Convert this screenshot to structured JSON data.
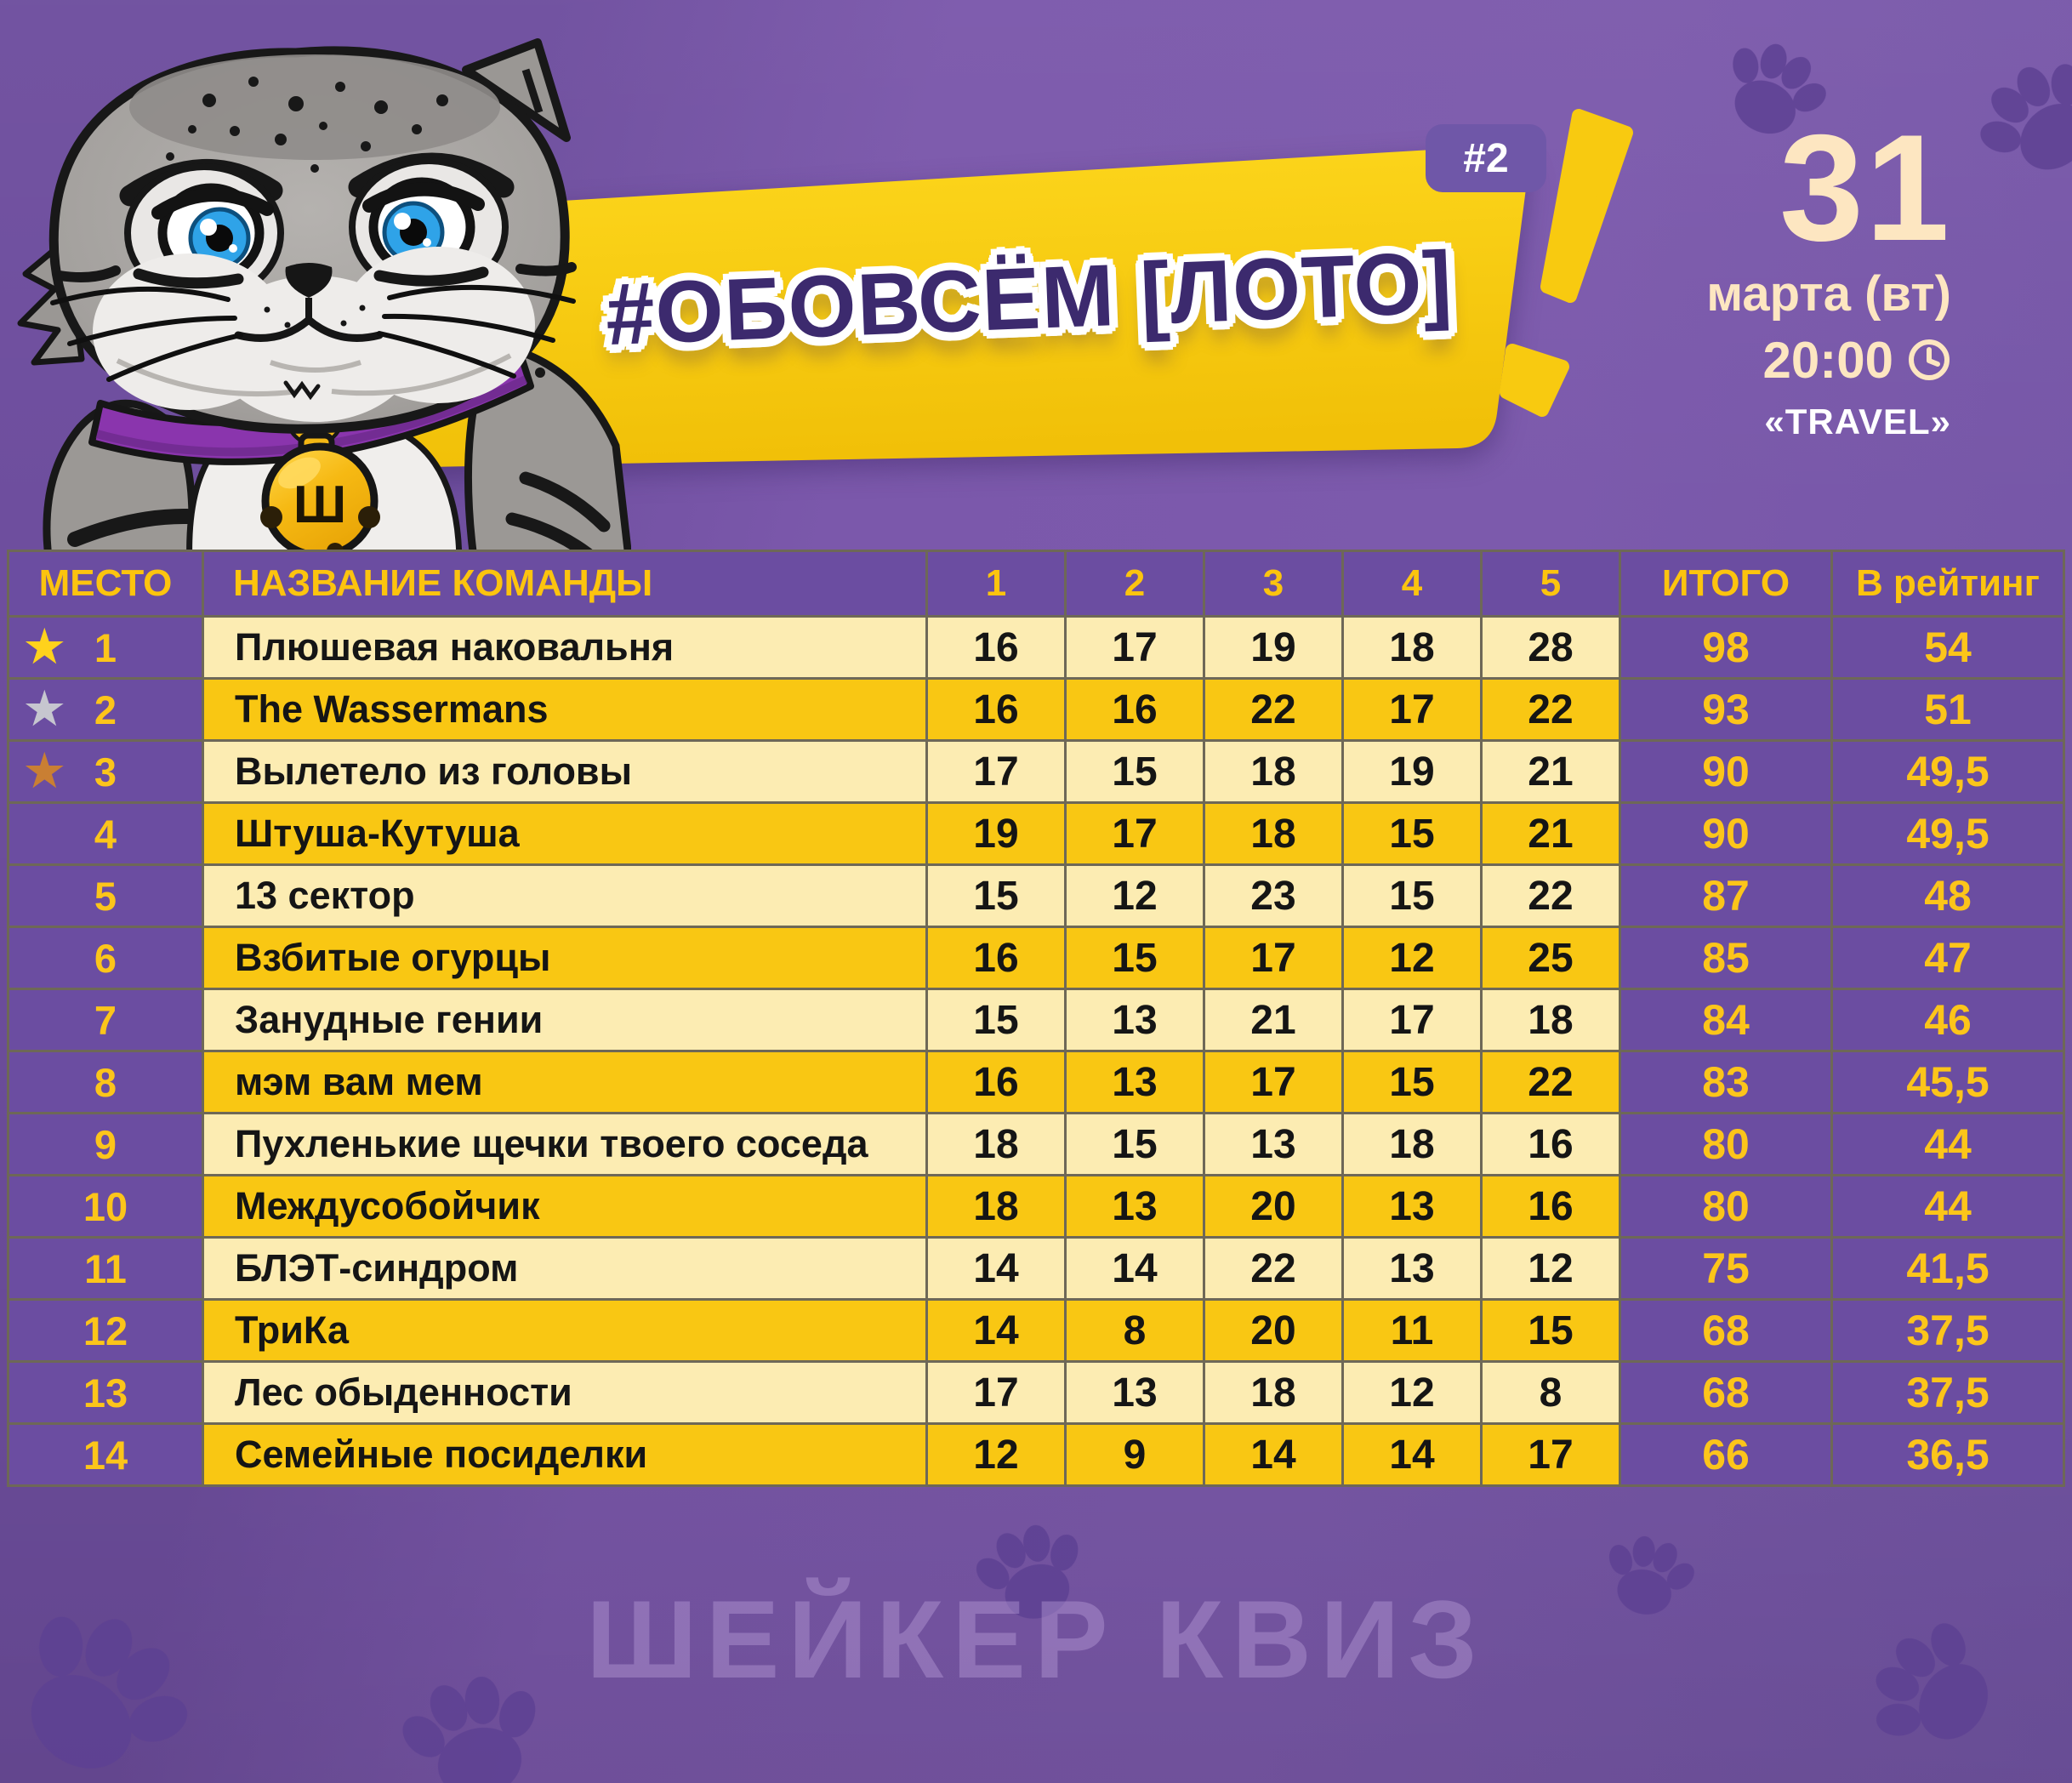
{
  "event": {
    "series_number": "#2",
    "title": "#ОБОВСЁМ [ЛОТО]",
    "day": "31",
    "month_weekday": "марта (вт)",
    "time": "20:00",
    "venue": "«TRAVEL»"
  },
  "branding": {
    "watermark": "ШЕЙКЕР КВИЗ",
    "medallion_letter": "Ш"
  },
  "table": {
    "headers": {
      "place": "МЕСТО",
      "team": "НАЗВАНИЕ КОМАНДЫ",
      "rounds": [
        "1",
        "2",
        "3",
        "4",
        "5"
      ],
      "total": "ИТОГО",
      "rating": "В рейтинг"
    },
    "rows": [
      {
        "place": "1",
        "medal": "gold",
        "team": "Плюшевая наковальня",
        "rounds": [
          "16",
          "17",
          "19",
          "18",
          "28"
        ],
        "total": "98",
        "rating": "54"
      },
      {
        "place": "2",
        "medal": "silver",
        "team": "The Wassermans",
        "rounds": [
          "16",
          "16",
          "22",
          "17",
          "22"
        ],
        "total": "93",
        "rating": "51"
      },
      {
        "place": "3",
        "medal": "bronze",
        "team": "Вылетело из головы",
        "rounds": [
          "17",
          "15",
          "18",
          "19",
          "21"
        ],
        "total": "90",
        "rating": "49,5"
      },
      {
        "place": "4",
        "medal": null,
        "team": "Штуша-Кутуша",
        "rounds": [
          "19",
          "17",
          "18",
          "15",
          "21"
        ],
        "total": "90",
        "rating": "49,5"
      },
      {
        "place": "5",
        "medal": null,
        "team": "13 сектор",
        "rounds": [
          "15",
          "12",
          "23",
          "15",
          "22"
        ],
        "total": "87",
        "rating": "48"
      },
      {
        "place": "6",
        "medal": null,
        "team": "Взбитые огурцы",
        "rounds": [
          "16",
          "15",
          "17",
          "12",
          "25"
        ],
        "total": "85",
        "rating": "47"
      },
      {
        "place": "7",
        "medal": null,
        "team": "Занудные гении",
        "rounds": [
          "15",
          "13",
          "21",
          "17",
          "18"
        ],
        "total": "84",
        "rating": "46"
      },
      {
        "place": "8",
        "medal": null,
        "team": "мэм вам мем",
        "rounds": [
          "16",
          "13",
          "17",
          "15",
          "22"
        ],
        "total": "83",
        "rating": "45,5"
      },
      {
        "place": "9",
        "medal": null,
        "team": "Пухленькие щечки твоего соседа",
        "rounds": [
          "18",
          "15",
          "13",
          "18",
          "16"
        ],
        "total": "80",
        "rating": "44"
      },
      {
        "place": "10",
        "medal": null,
        "team": "Междусобойчик",
        "rounds": [
          "18",
          "13",
          "20",
          "13",
          "16"
        ],
        "total": "80",
        "rating": "44"
      },
      {
        "place": "11",
        "medal": null,
        "team": "БЛЭТ-синдром",
        "rounds": [
          "14",
          "14",
          "22",
          "13",
          "12"
        ],
        "total": "75",
        "rating": "41,5"
      },
      {
        "place": "12",
        "medal": null,
        "team": "ТриКа",
        "rounds": [
          "14",
          "8",
          "20",
          "11",
          "15"
        ],
        "total": "68",
        "rating": "37,5"
      },
      {
        "place": "13",
        "medal": null,
        "team": "Лес обыденности",
        "rounds": [
          "17",
          "13",
          "18",
          "12",
          "8"
        ],
        "total": "68",
        "rating": "37,5"
      },
      {
        "place": "14",
        "medal": null,
        "team": "Семейные посиделки",
        "rounds": [
          "12",
          "9",
          "14",
          "14",
          "17"
        ],
        "total": "66",
        "rating": "36,5"
      }
    ]
  },
  "colors": {
    "background": "#7555a7",
    "banner_yellow": "#f8ca10",
    "cell_purple": "#6b4da1",
    "row_cream": "#fcecb2",
    "row_gold": "#f9c713",
    "accent_gold_text": "#fcc40e",
    "title_text": "#3c2a6e",
    "date_text": "#fde6c1",
    "star_gold": "#ffd21c",
    "star_silver": "#c6c6cf",
    "star_bronze": "#c97f33",
    "paw_print": "#5e4193"
  }
}
